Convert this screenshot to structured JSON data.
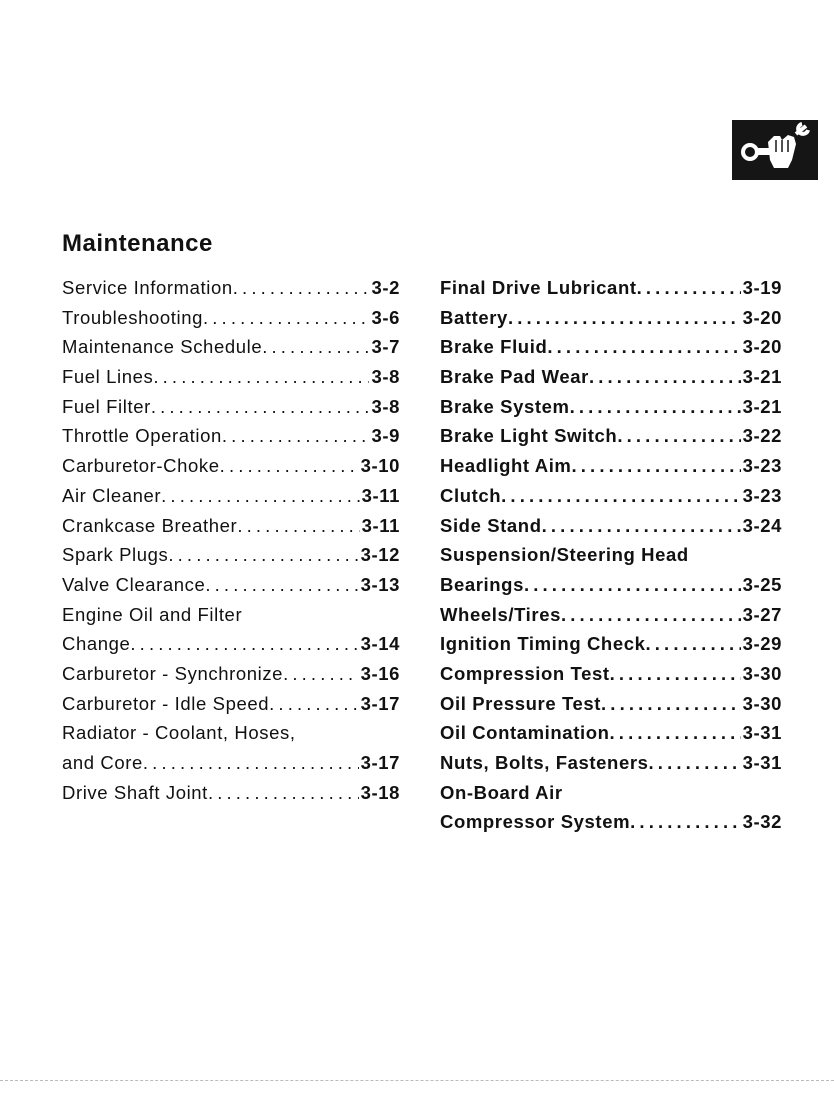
{
  "header": {
    "title": "Maintenance",
    "icon": "hand-wrench-icon"
  },
  "toc": {
    "left": [
      {
        "label": "Service Information",
        "page": "3-2"
      },
      {
        "label": "Troubleshooting",
        "page": "3-6"
      },
      {
        "label": "Maintenance Schedule",
        "page": "3-7"
      },
      {
        "label": "Fuel Lines",
        "page": "3-8"
      },
      {
        "label": "Fuel Filter",
        "page": "3-8"
      },
      {
        "label": "Throttle Operation",
        "page": "3-9"
      },
      {
        "label": "Carburetor-Choke",
        "page": "3-10"
      },
      {
        "label": "Air Cleaner",
        "page": "3-11"
      },
      {
        "label": "Crankcase Breather",
        "page": "3-11"
      },
      {
        "label": "Spark Plugs",
        "page": "3-12"
      },
      {
        "label": "Valve Clearance",
        "page": "3-13"
      },
      {
        "label": "Engine Oil and Filter",
        "continuation": "Change",
        "page": "3-14"
      },
      {
        "label": "Carburetor - Synchronize",
        "page": "3-16"
      },
      {
        "label": "Carburetor - Idle Speed",
        "page": "3-17"
      },
      {
        "label": "Radiator - Coolant, Hoses,",
        "continuation": "and Core",
        "page": "3-17"
      },
      {
        "label": "Drive Shaft Joint",
        "page": "3-18"
      }
    ],
    "right": [
      {
        "label": "Final Drive Lubricant",
        "page": "3-19"
      },
      {
        "label": "Battery",
        "page": "3-20"
      },
      {
        "label": "Brake Fluid",
        "page": "3-20"
      },
      {
        "label": "Brake Pad Wear",
        "page": "3-21"
      },
      {
        "label": "Brake System",
        "page": "3-21"
      },
      {
        "label": "Brake Light Switch",
        "page": "3-22"
      },
      {
        "label": "Headlight Aim",
        "page": "3-23"
      },
      {
        "label": "Clutch",
        "page": "3-23"
      },
      {
        "label": "Side Stand",
        "page": "3-24"
      },
      {
        "label": "Suspension/Steering Head",
        "continuation": "Bearings",
        "page": "3-25"
      },
      {
        "label": "Wheels/Tires",
        "page": "3-27"
      },
      {
        "label": "Ignition Timing Check",
        "page": "3-29"
      },
      {
        "label": "Compression Test",
        "page": "3-30"
      },
      {
        "label": "Oil Pressure Test",
        "page": "3-30"
      },
      {
        "label": "Oil Contamination",
        "page": "3-31"
      },
      {
        "label": "Nuts, Bolts, Fasteners",
        "page": "3-31"
      },
      {
        "label": "On-Board Air",
        "continuation": "Compressor System",
        "page": "3-32"
      }
    ]
  }
}
